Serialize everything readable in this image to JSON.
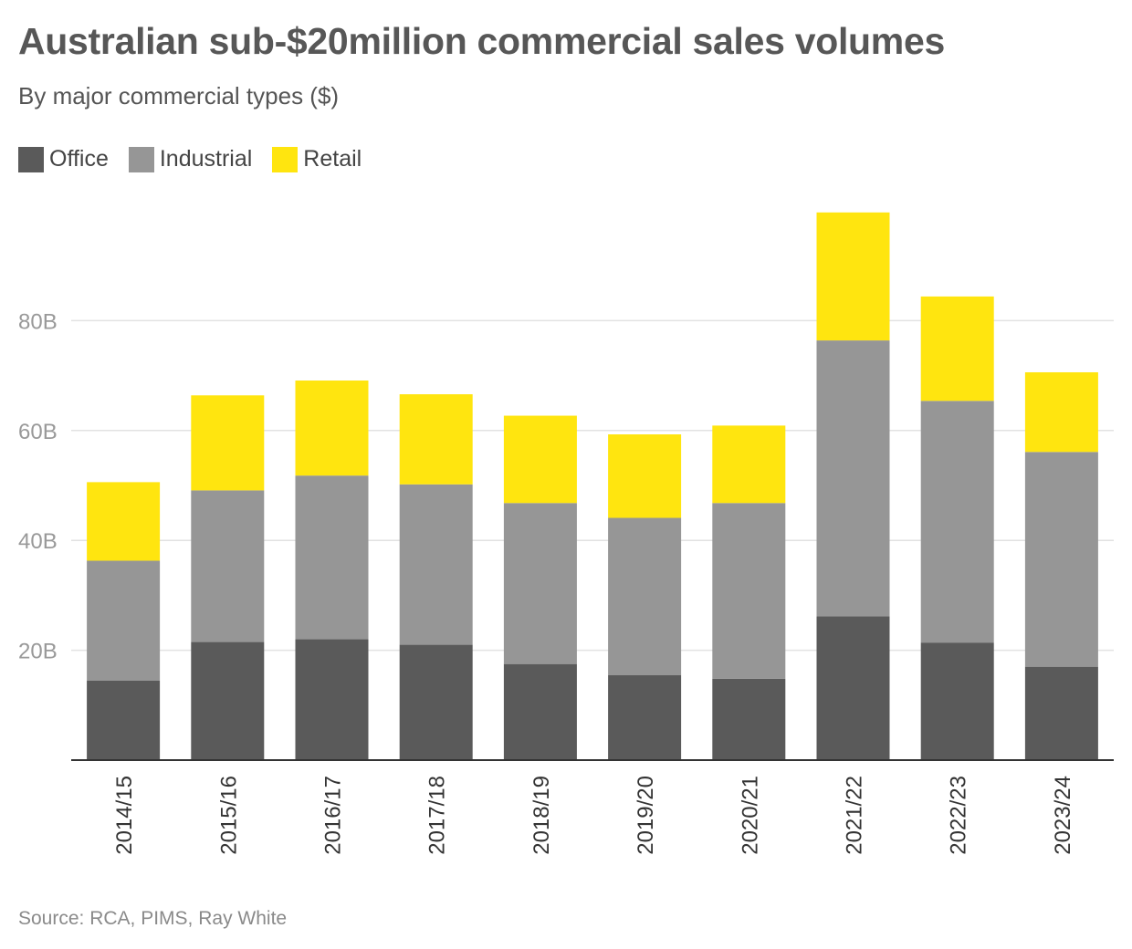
{
  "header": {
    "title": "Australian sub-$20million commercial sales volumes",
    "subtitle": "By major commercial types ($)"
  },
  "footer": {
    "source": "Source: RCA, PIMS, Ray White"
  },
  "colors": {
    "office": "#5a5a5a",
    "industrial": "#969696",
    "retail": "#ffe50f",
    "grid": "#e2e2e2",
    "axis": "#333333"
  },
  "chart_data": {
    "type": "bar",
    "stacked": true,
    "title": "Australian sub-$20million commercial sales volumes",
    "subtitle": "By major commercial types ($)",
    "xlabel": "",
    "ylabel": "",
    "ylim": [
      0,
      100
    ],
    "yticks": [
      20,
      40,
      60,
      80
    ],
    "ytick_labels": [
      "20B",
      "40B",
      "60B",
      "80B"
    ],
    "grid": true,
    "legend_position": "top-left",
    "categories": [
      "2014/15",
      "2015/16",
      "2016/17",
      "2017/18",
      "2018/19",
      "2019/20",
      "2020/21",
      "2021/22",
      "2022/23",
      "2023/24"
    ],
    "series": [
      {
        "name": "Office",
        "color_key": "office",
        "values": [
          14.5,
          21.5,
          22.0,
          21.0,
          17.5,
          15.5,
          14.8,
          26.2,
          21.4,
          17.0
        ]
      },
      {
        "name": "Industrial",
        "color_key": "industrial",
        "values": [
          21.8,
          27.6,
          29.8,
          29.2,
          29.3,
          28.6,
          32.0,
          50.2,
          44.0,
          39.1
        ]
      },
      {
        "name": "Retail",
        "color_key": "retail",
        "values": [
          14.3,
          17.3,
          17.3,
          16.4,
          15.9,
          15.2,
          14.1,
          23.3,
          19.0,
          14.5
        ]
      }
    ]
  }
}
